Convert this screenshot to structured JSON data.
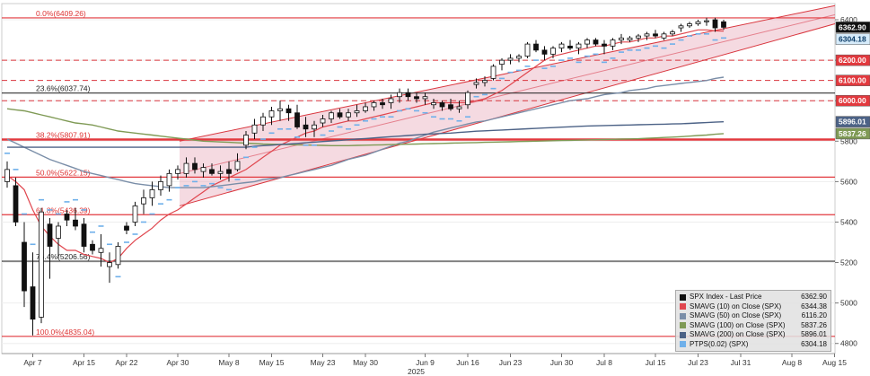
{
  "chart_data": {
    "type": "candlestick",
    "title": "",
    "ylim": [
      4750,
      6480
    ],
    "y_ticks": [
      4800,
      5000,
      5200,
      5400,
      5600,
      5800,
      6000,
      6200,
      6400
    ],
    "x_ticks": [
      "Apr 7",
      "Apr 15",
      "Apr 22",
      "Apr 30",
      "May 8",
      "May 15",
      "May 23",
      "May 30",
      "Jun 9",
      "Jun 16",
      "Jun 23",
      "Jun 30",
      "Jul 8",
      "Jul 15",
      "Jul 23",
      "Jul 31",
      "Aug 8",
      "Aug 15"
    ],
    "year_label": "2025",
    "candles": [
      {
        "o": 5600,
        "h": 5700,
        "l": 5570,
        "c": 5660
      },
      {
        "o": 5580,
        "h": 5620,
        "l": 5380,
        "c": 5400
      },
      {
        "o": 5300,
        "h": 5400,
        "l": 4980,
        "c": 5060
      },
      {
        "o": 5080,
        "h": 5250,
        "l": 4840,
        "c": 4920
      },
      {
        "o": 4930,
        "h": 5470,
        "l": 4900,
        "c": 5450
      },
      {
        "o": 5390,
        "h": 5420,
        "l": 5120,
        "c": 5280
      },
      {
        "o": 5320,
        "h": 5400,
        "l": 5220,
        "c": 5380
      },
      {
        "o": 5440,
        "h": 5460,
        "l": 5380,
        "c": 5410
      },
      {
        "o": 5410,
        "h": 5470,
        "l": 5360,
        "c": 5380
      },
      {
        "o": 5390,
        "h": 5420,
        "l": 5250,
        "c": 5280
      },
      {
        "o": 5290,
        "h": 5310,
        "l": 5240,
        "c": 5260
      },
      {
        "o": 5250,
        "h": 5340,
        "l": 5180,
        "c": 5270
      },
      {
        "o": 5180,
        "h": 5250,
        "l": 5100,
        "c": 5200
      },
      {
        "o": 5190,
        "h": 5300,
        "l": 5170,
        "c": 5280
      },
      {
        "o": 5380,
        "h": 5400,
        "l": 5340,
        "c": 5360
      },
      {
        "o": 5400,
        "h": 5500,
        "l": 5380,
        "c": 5480
      },
      {
        "o": 5490,
        "h": 5560,
        "l": 5440,
        "c": 5520
      },
      {
        "o": 5520,
        "h": 5600,
        "l": 5480,
        "c": 5560
      },
      {
        "o": 5560,
        "h": 5630,
        "l": 5530,
        "c": 5600
      },
      {
        "o": 5580,
        "h": 5660,
        "l": 5550,
        "c": 5640
      },
      {
        "o": 5640,
        "h": 5680,
        "l": 5610,
        "c": 5660
      },
      {
        "o": 5640,
        "h": 5720,
        "l": 5620,
        "c": 5690
      },
      {
        "o": 5690,
        "h": 5720,
        "l": 5640,
        "c": 5660
      },
      {
        "o": 5650,
        "h": 5690,
        "l": 5620,
        "c": 5670
      },
      {
        "o": 5660,
        "h": 5690,
        "l": 5630,
        "c": 5640
      },
      {
        "o": 5640,
        "h": 5680,
        "l": 5610,
        "c": 5650
      },
      {
        "o": 5660,
        "h": 5700,
        "l": 5600,
        "c": 5640
      },
      {
        "o": 5660,
        "h": 5740,
        "l": 5650,
        "c": 5700
      },
      {
        "o": 5780,
        "h": 5850,
        "l": 5760,
        "c": 5830
      },
      {
        "o": 5840,
        "h": 5910,
        "l": 5810,
        "c": 5880
      },
      {
        "o": 5880,
        "h": 5940,
        "l": 5850,
        "c": 5920
      },
      {
        "o": 5920,
        "h": 5970,
        "l": 5880,
        "c": 5950
      },
      {
        "o": 5950,
        "h": 6000,
        "l": 5900,
        "c": 5960
      },
      {
        "o": 5960,
        "h": 5980,
        "l": 5900,
        "c": 5940
      },
      {
        "o": 5940,
        "h": 5980,
        "l": 5860,
        "c": 5870
      },
      {
        "o": 5880,
        "h": 5920,
        "l": 5820,
        "c": 5860
      },
      {
        "o": 5860,
        "h": 5900,
        "l": 5820,
        "c": 5880
      },
      {
        "o": 5890,
        "h": 5930,
        "l": 5870,
        "c": 5910
      },
      {
        "o": 5910,
        "h": 5950,
        "l": 5890,
        "c": 5940
      },
      {
        "o": 5940,
        "h": 5960,
        "l": 5910,
        "c": 5920
      },
      {
        "o": 5920,
        "h": 5960,
        "l": 5900,
        "c": 5940
      },
      {
        "o": 5940,
        "h": 5980,
        "l": 5920,
        "c": 5950
      },
      {
        "o": 5950,
        "h": 5990,
        "l": 5940,
        "c": 5970
      },
      {
        "o": 5970,
        "h": 6000,
        "l": 5950,
        "c": 5990
      },
      {
        "o": 5990,
        "h": 6010,
        "l": 5960,
        "c": 5980
      },
      {
        "o": 5990,
        "h": 6030,
        "l": 5960,
        "c": 6010
      },
      {
        "o": 6020,
        "h": 6060,
        "l": 5990,
        "c": 6040
      },
      {
        "o": 6040,
        "h": 6060,
        "l": 6000,
        "c": 6020
      },
      {
        "o": 6020,
        "h": 6040,
        "l": 5990,
        "c": 6010
      },
      {
        "o": 6010,
        "h": 6040,
        "l": 5980,
        "c": 6020
      },
      {
        "o": 5980,
        "h": 6010,
        "l": 5960,
        "c": 5990
      },
      {
        "o": 5990,
        "h": 6000,
        "l": 5950,
        "c": 5970
      },
      {
        "o": 5980,
        "h": 6010,
        "l": 5950,
        "c": 5960
      },
      {
        "o": 5960,
        "h": 6000,
        "l": 5940,
        "c": 5970
      },
      {
        "o": 5980,
        "h": 6050,
        "l": 5960,
        "c": 6040
      },
      {
        "o": 6080,
        "h": 6110,
        "l": 6060,
        "c": 6090
      },
      {
        "o": 6090,
        "h": 6120,
        "l": 6070,
        "c": 6100
      },
      {
        "o": 6110,
        "h": 6180,
        "l": 6100,
        "c": 6170
      },
      {
        "o": 6180,
        "h": 6210,
        "l": 6150,
        "c": 6200
      },
      {
        "o": 6200,
        "h": 6230,
        "l": 6180,
        "c": 6210
      },
      {
        "o": 6210,
        "h": 6230,
        "l": 6190,
        "c": 6220
      },
      {
        "o": 6220,
        "h": 6290,
        "l": 6210,
        "c": 6280
      },
      {
        "o": 6280,
        "h": 6300,
        "l": 6240,
        "c": 6250
      },
      {
        "o": 6250,
        "h": 6270,
        "l": 6200,
        "c": 6230
      },
      {
        "o": 6230,
        "h": 6270,
        "l": 6210,
        "c": 6260
      },
      {
        "o": 6260,
        "h": 6290,
        "l": 6240,
        "c": 6280
      },
      {
        "o": 6270,
        "h": 6300,
        "l": 6250,
        "c": 6260
      },
      {
        "o": 6260,
        "h": 6290,
        "l": 6230,
        "c": 6280
      },
      {
        "o": 6280,
        "h": 6310,
        "l": 6260,
        "c": 6300
      },
      {
        "o": 6300,
        "h": 6310,
        "l": 6270,
        "c": 6280
      },
      {
        "o": 6280,
        "h": 6300,
        "l": 6230,
        "c": 6270
      },
      {
        "o": 6270,
        "h": 6310,
        "l": 6250,
        "c": 6300
      },
      {
        "o": 6300,
        "h": 6330,
        "l": 6280,
        "c": 6310
      },
      {
        "o": 6300,
        "h": 6320,
        "l": 6290,
        "c": 6310
      },
      {
        "o": 6310,
        "h": 6330,
        "l": 6290,
        "c": 6320
      },
      {
        "o": 6320,
        "h": 6340,
        "l": 6300,
        "c": 6330
      },
      {
        "o": 6330,
        "h": 6350,
        "l": 6310,
        "c": 6320
      },
      {
        "o": 6310,
        "h": 6340,
        "l": 6300,
        "c": 6330
      },
      {
        "o": 6330,
        "h": 6350,
        "l": 6320,
        "c": 6340
      },
      {
        "o": 6360,
        "h": 6380,
        "l": 6340,
        "c": 6370
      },
      {
        "o": 6370,
        "h": 6390,
        "l": 6360,
        "c": 6380
      },
      {
        "o": 6380,
        "h": 6400,
        "l": 6370,
        "c": 6390
      },
      {
        "o": 6390,
        "h": 6410,
        "l": 6370,
        "c": 6395
      },
      {
        "o": 6400,
        "h": 6410,
        "l": 6340,
        "c": 6360
      },
      {
        "o": 6390,
        "h": 6400,
        "l": 6350,
        "c": 6362.9
      }
    ],
    "fib_levels": [
      {
        "label": "0.0%(6409.26)",
        "value": 6409.26
      },
      {
        "label": "23.6%(6037.74)",
        "value": 6037.74
      },
      {
        "label": "38.2%(5807.91)",
        "value": 5807.91
      },
      {
        "label": "50.0%(5622.15)",
        "value": 5622.15
      },
      {
        "label": "61.8%(5436.39)",
        "value": 5436.39
      },
      {
        "label": "76.4%(5206.56)",
        "value": 5206.56
      },
      {
        "label": "100.0%(4835.04)",
        "value": 4835.04
      }
    ],
    "dashed_levels": [
      6200,
      6100,
      6000
    ],
    "series": [
      {
        "name": "SMAVG (10) on Close (SPX)",
        "color": "#e0464e",
        "tag": "6344.38",
        "values": [
          5630,
          5600,
          5560,
          5460,
          5380,
          5330,
          5290,
          5260,
          5260,
          5240,
          5230,
          5220,
          5200,
          5220,
          5270,
          5310,
          5340,
          5370,
          5410,
          5440,
          5460,
          5490,
          5520,
          5550,
          5580,
          5600,
          5620,
          5640,
          5660,
          5690,
          5720,
          5750,
          5780,
          5800,
          5820,
          5840,
          5850,
          5870,
          5880,
          5890,
          5900,
          5900,
          5910,
          5920,
          5930,
          5940,
          5950,
          5960,
          5970,
          5980,
          5990,
          5990,
          5990,
          5990,
          5990,
          6000,
          6010,
          6030,
          6050,
          6080,
          6110,
          6140,
          6170,
          6200,
          6220,
          6230,
          6240,
          6250,
          6260,
          6270,
          6270,
          6280,
          6290,
          6290,
          6300,
          6310,
          6310,
          6320,
          6320,
          6330,
          6340,
          6350,
          6350,
          6345,
          6344.38
        ]
      },
      {
        "name": "SMAVG (50) on Close (SPX)",
        "color": "#7a8ea8",
        "tag": "6116.20",
        "values": [
          5810,
          5790,
          5770,
          5750,
          5730,
          5710,
          5695,
          5680,
          5665,
          5650,
          5640,
          5630,
          5620,
          5610,
          5600,
          5590,
          5585,
          5580,
          5575,
          5570,
          5570,
          5570,
          5570,
          5570,
          5575,
          5580,
          5585,
          5590,
          5595,
          5600,
          5610,
          5615,
          5620,
          5630,
          5640,
          5650,
          5660,
          5670,
          5680,
          5695,
          5710,
          5720,
          5730,
          5745,
          5760,
          5775,
          5790,
          5800,
          5815,
          5830,
          5845,
          5855,
          5865,
          5875,
          5885,
          5895,
          5900,
          5910,
          5920,
          5930,
          5940,
          5950,
          5960,
          5970,
          5980,
          5990,
          6000,
          6005,
          6010,
          6020,
          6030,
          6035,
          6040,
          6050,
          6055,
          6060,
          6070,
          6075,
          6080,
          6085,
          6090,
          6095,
          6100,
          6110,
          6116.2
        ]
      },
      {
        "name": "SMAVG (100) on Close (SPX)",
        "color": "#7f9a55",
        "tag": "5837.26",
        "values": [
          5960,
          5955,
          5950,
          5940,
          5930,
          5920,
          5910,
          5900,
          5890,
          5885,
          5880,
          5870,
          5860,
          5850,
          5845,
          5840,
          5835,
          5830,
          5825,
          5820,
          5815,
          5810,
          5805,
          5800,
          5798,
          5796,
          5794,
          5792,
          5790,
          5788,
          5786,
          5785,
          5784,
          5783,
          5782,
          5781,
          5780,
          5779,
          5778,
          5778,
          5778,
          5779,
          5780,
          5781,
          5782,
          5783,
          5784,
          5785,
          5786,
          5787,
          5788,
          5789,
          5790,
          5791,
          5792,
          5793,
          5794,
          5795,
          5796,
          5797,
          5798,
          5799,
          5800,
          5801,
          5802,
          5803,
          5804,
          5805,
          5806,
          5807,
          5808,
          5809,
          5810,
          5811,
          5812,
          5814,
          5816,
          5818,
          5820,
          5822,
          5825,
          5828,
          5830,
          5834,
          5837.26
        ]
      },
      {
        "name": "SMAVG (200) on Close (SPX)",
        "color": "#4c6286",
        "tag": "5896.01",
        "values": [
          5770,
          5770,
          5770,
          5770,
          5770,
          5770,
          5770,
          5770,
          5770,
          5770,
          5770,
          5770,
          5770,
          5770,
          5770,
          5770,
          5770,
          5770,
          5770,
          5770,
          5770,
          5770,
          5770,
          5770,
          5770,
          5770,
          5770,
          5770,
          5770,
          5775,
          5778,
          5780,
          5783,
          5786,
          5789,
          5792,
          5795,
          5798,
          5801,
          5804,
          5807,
          5810,
          5813,
          5816,
          5819,
          5822,
          5825,
          5828,
          5831,
          5834,
          5836,
          5838,
          5840,
          5843,
          5846,
          5849,
          5851,
          5853,
          5855,
          5857,
          5859,
          5861,
          5863,
          5865,
          5867,
          5869,
          5871,
          5873,
          5875,
          5876,
          5877,
          5878,
          5879,
          5880,
          5881,
          5882,
          5883,
          5884,
          5885,
          5886,
          5888,
          5890,
          5892,
          5894,
          5896.01
        ]
      }
    ],
    "ptps": {
      "name": "PTPS(0.02) (SPX)",
      "color": "#6fb0ea",
      "tag": "6304.18"
    },
    "last_price": {
      "name": "SPX Index - Last Price",
      "color": "#111111",
      "tag": "6362.90"
    },
    "level_tags": [
      {
        "value": 6200,
        "tag": "6200.00"
      },
      {
        "value": 6100,
        "tag": "6100.00"
      },
      {
        "value": 6000,
        "tag": "6000.00"
      }
    ]
  }
}
